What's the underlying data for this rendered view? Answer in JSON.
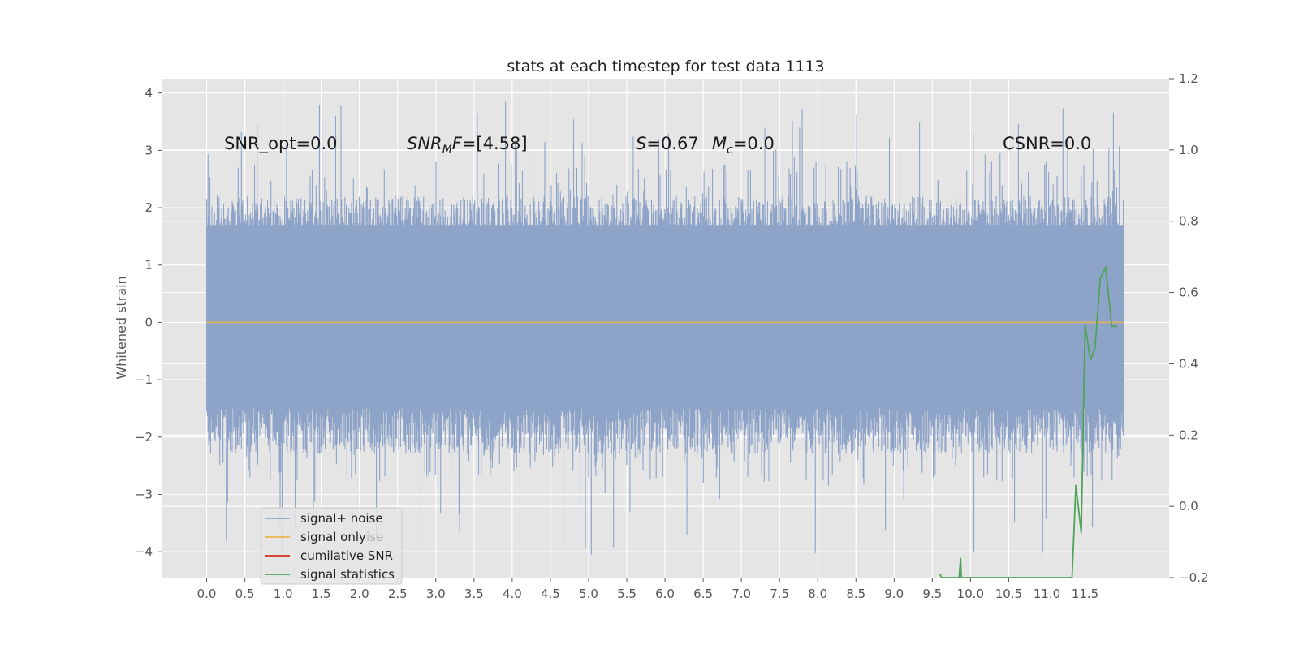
{
  "chart_data": {
    "type": "line",
    "title": "stats at each timestep for test data 1113",
    "ylabel": "Whitened strain",
    "xlabel": "",
    "xlim": [
      -0.58,
      12.6
    ],
    "ylim": [
      -4.45,
      4.25
    ],
    "y2lim": [
      -0.2,
      1.2
    ],
    "x_ticks": [
      0.0,
      0.5,
      1.0,
      1.5,
      2.0,
      2.5,
      3.0,
      3.5,
      4.0,
      4.5,
      5.0,
      5.5,
      6.0,
      6.5,
      7.0,
      7.5,
      8.0,
      8.5,
      9.0,
      9.5,
      10.0,
      10.5,
      11.0,
      11.5
    ],
    "x_tick_labels": [
      "0.0",
      "0.5",
      "1.0",
      "1.5",
      "2.0",
      "2.5",
      "3.0",
      "3.5",
      "4.0",
      "4.5",
      "5.0",
      "5.5",
      "6.0",
      "6.5",
      "7.0",
      "7.5",
      "8.0",
      "8.5",
      "9.0",
      "9.5",
      "10.0",
      "10.5",
      "11.0",
      "11.5"
    ],
    "y_ticks": [
      -4,
      -3,
      -2,
      -1,
      0,
      1,
      2,
      3,
      4
    ],
    "y_tick_labels": [
      "−4",
      "−3",
      "−2",
      "−1",
      "0",
      "1",
      "2",
      "3",
      "4"
    ],
    "y2_ticks": [
      -0.2,
      0.0,
      0.2,
      0.4,
      0.6,
      0.8,
      1.0,
      1.2
    ],
    "y2_tick_labels": [
      "−0.2",
      "0.0",
      "0.2",
      "0.4",
      "0.6",
      "0.8",
      "1.0",
      "1.2"
    ],
    "grid": true,
    "legend_position": "lower-left",
    "noise": {
      "x_start": 0.0,
      "x_end": 12.0,
      "envelope_low": -2.0,
      "envelope_high": 2.0,
      "peak_max": 3.85,
      "peak_min": -4.1
    },
    "series": [
      {
        "name": "signal+ noise",
        "color": "#8ea3c8",
        "axis": "left",
        "note_values": "dense noise between about -2 and 2 with spikes to ±4"
      },
      {
        "name": "signal only",
        "color": "#e8b64c",
        "axis": "left",
        "x": [
          0.0,
          12.0
        ],
        "y": [
          0.0,
          0.0
        ]
      },
      {
        "name": "cumilative SNR",
        "color": "#d62d20",
        "axis": "right",
        "x": [],
        "y": []
      },
      {
        "name": "signal statistics",
        "color": "#4ea358",
        "axis": "right",
        "x": [
          9.6,
          9.62,
          9.85,
          9.87,
          9.88,
          11.33,
          11.38,
          11.45,
          11.5,
          11.57,
          11.63,
          11.7,
          11.77,
          11.85,
          11.92
        ],
        "y": [
          -0.19,
          -0.215,
          -0.26,
          -0.145,
          -0.21,
          -0.2,
          0.06,
          -0.075,
          0.51,
          0.41,
          0.445,
          0.64,
          0.67,
          0.505,
          0.505
        ]
      }
    ],
    "annotations": [
      {
        "text": "SNR_opt=0.0"
      },
      {
        "text": "SNR_MF=[4.58]"
      },
      {
        "text": "S=0.67"
      },
      {
        "text": "M_c=0.0"
      },
      {
        "text": "CSNR=0.0"
      }
    ],
    "legend_ghost_text": "ise"
  }
}
